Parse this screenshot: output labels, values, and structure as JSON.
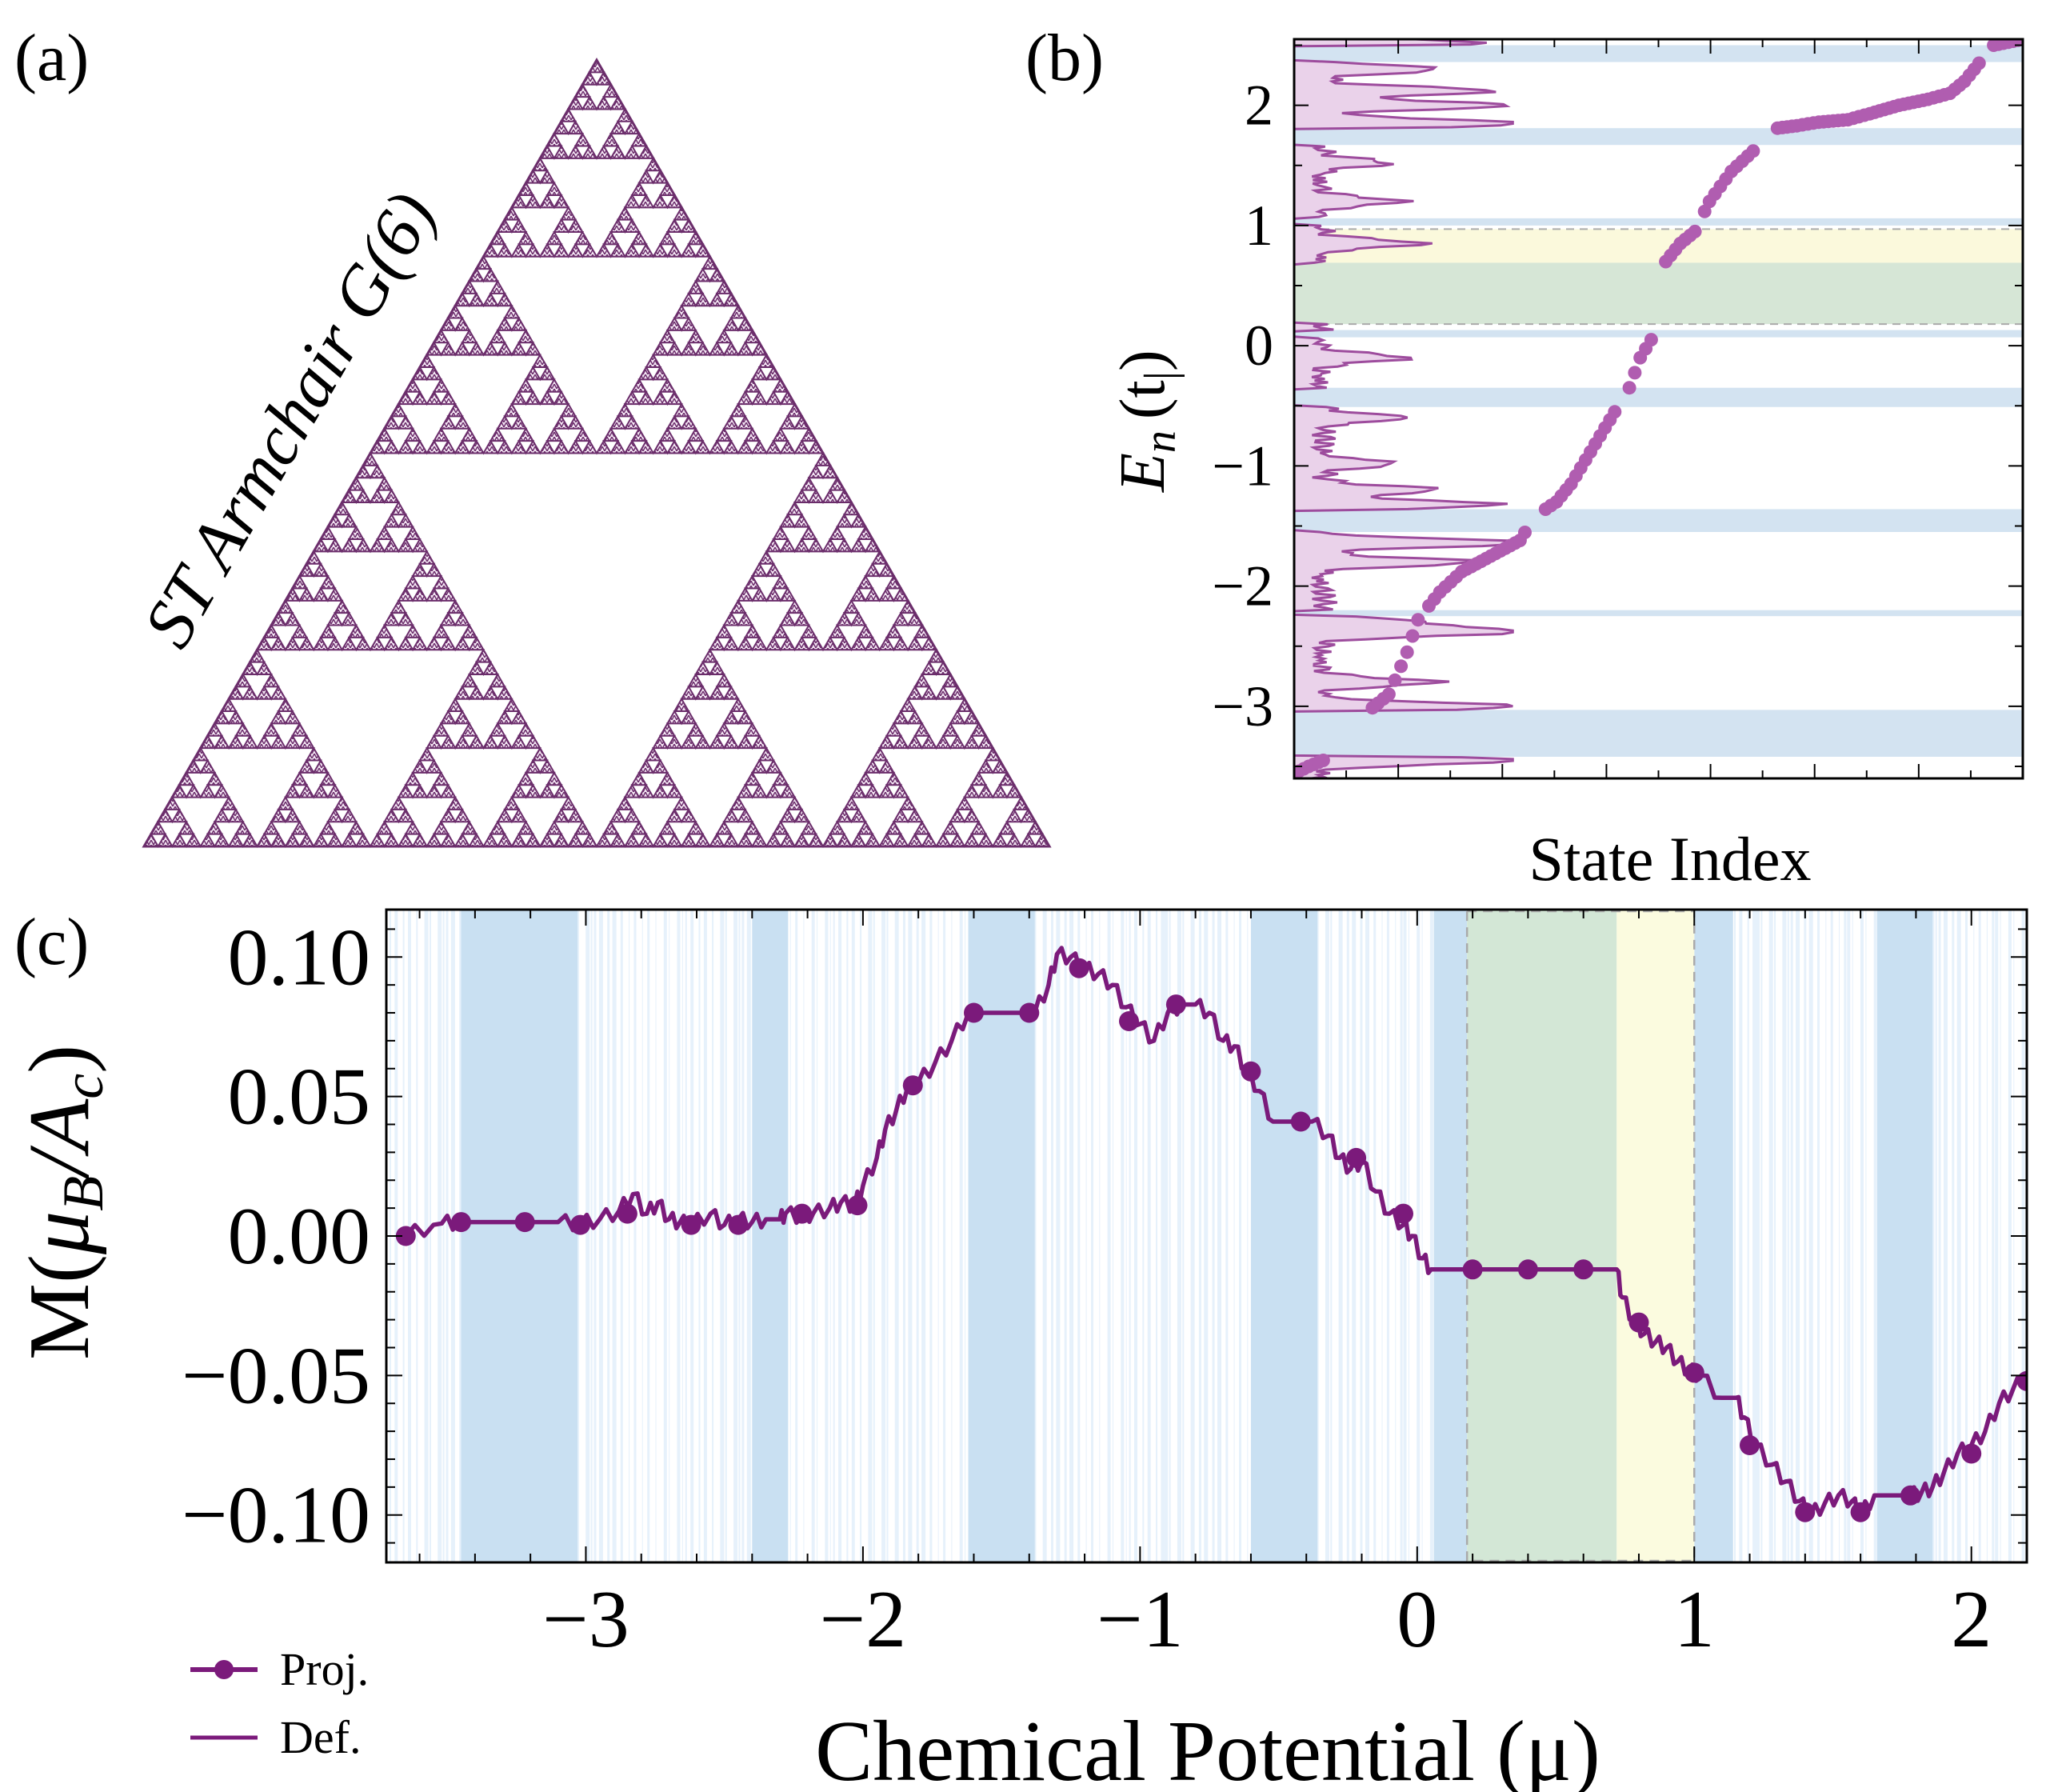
{
  "figure": {
    "panel_a": {
      "label": "(a)",
      "title": "ST Armchair G(6)",
      "color": "#6b2d6b"
    },
    "panel_b": {
      "label": "(b)",
      "ylabel_var": "E",
      "ylabel_sub": "n",
      "ylabel_unit": "(t",
      "ylabel_unit_sub": "|",
      "ylabel_close": ")",
      "xlabel": "State Index"
    },
    "panel_c": {
      "label": "(c)",
      "ylabel_pre": "M(",
      "ylabel_mu": "μ",
      "ylabel_musub": "B",
      "ylabel_slash": "/",
      "ylabel_a": "A",
      "ylabel_asub": "c",
      "ylabel_close": ")",
      "xlabel": "Chemical Potential (μ)",
      "legend": {
        "proj": "Proj.",
        "def": "Def."
      }
    }
  },
  "chart_data": [
    {
      "id": "b",
      "type": "scatter",
      "title": "",
      "xlabel": "State Index",
      "ylabel": "E_n (t|)",
      "ylim": [
        -3.6,
        2.55
      ],
      "yticks": [
        -3,
        -2,
        -1,
        0,
        1,
        2
      ],
      "ytick_labels": [
        "−3",
        "−2",
        "−1",
        "0",
        "1",
        "2"
      ],
      "grid": false,
      "colors": {
        "points": "#b05db0",
        "dos": "#9d4c9d",
        "dos_fill": "#ead2ea",
        "gap": "#d3e3f1",
        "yellow": "#fbf9dc",
        "green": "#d6e6d6"
      },
      "spectrum": [
        {
          "idx": 0.0,
          "E": -3.56
        },
        {
          "idx": 0.02,
          "E": -3.5
        },
        {
          "idx": 0.04,
          "E": -3.45
        },
        {
          "idx": 0.07,
          "E": -3.28
        },
        {
          "idx": 0.1,
          "E": -3.05
        },
        {
          "idx": 0.13,
          "E": -2.9
        },
        {
          "idx": 0.155,
          "E": -2.55
        },
        {
          "idx": 0.17,
          "E": -2.28
        },
        {
          "idx": 0.2,
          "E": -2.05
        },
        {
          "idx": 0.23,
          "E": -1.88
        },
        {
          "idx": 0.27,
          "E": -1.75
        },
        {
          "idx": 0.31,
          "E": -1.62
        },
        {
          "idx": 0.33,
          "E": -1.42
        },
        {
          "idx": 0.36,
          "E": -1.3
        },
        {
          "idx": 0.38,
          "E": -1.15
        },
        {
          "idx": 0.4,
          "E": -0.95
        },
        {
          "idx": 0.42,
          "E": -0.75
        },
        {
          "idx": 0.44,
          "E": -0.55
        },
        {
          "idx": 0.46,
          "E": -0.35
        },
        {
          "idx": 0.475,
          "E": -0.1
        },
        {
          "idx": 0.49,
          "E": 0.05
        },
        {
          "idx": 0.5,
          "E": 0.1
        },
        {
          "idx": 0.51,
          "E": 0.7
        },
        {
          "idx": 0.53,
          "E": 0.85
        },
        {
          "idx": 0.55,
          "E": 0.95
        },
        {
          "idx": 0.57,
          "E": 1.2
        },
        {
          "idx": 0.6,
          "E": 1.45
        },
        {
          "idx": 0.63,
          "E": 1.62
        },
        {
          "idx": 0.65,
          "E": 1.8
        },
        {
          "idx": 0.69,
          "E": 1.83
        },
        {
          "idx": 0.72,
          "E": 1.86
        },
        {
          "idx": 0.76,
          "E": 1.88
        },
        {
          "idx": 0.79,
          "E": 1.93
        },
        {
          "idx": 0.83,
          "E": 2.0
        },
        {
          "idx": 0.87,
          "E": 2.05
        },
        {
          "idx": 0.9,
          "E": 2.1
        },
        {
          "idx": 0.92,
          "E": 2.2
        },
        {
          "idx": 0.94,
          "E": 2.35
        },
        {
          "idx": 0.96,
          "E": 2.5
        },
        {
          "idx": 1.0,
          "E": 2.55
        }
      ],
      "gaps": [
        [
          2.36,
          2.5
        ],
        [
          1.67,
          1.81
        ],
        [
          1.0,
          1.06
        ],
        [
          0.18,
          0.69
        ],
        [
          0.07,
          0.13
        ],
        [
          -0.51,
          -0.35
        ],
        [
          -1.55,
          -1.36
        ],
        [
          -2.25,
          -2.2
        ],
        [
          -3.42,
          -3.03
        ]
      ],
      "yellow_band": [
        0.69,
        0.97
      ],
      "green_band": [
        0.18,
        0.69
      ],
      "dos_peaks": [
        {
          "E": -3.45,
          "w": 0.95
        },
        {
          "E": -3.0,
          "w": 0.9
        },
        {
          "E": -2.8,
          "w": 0.52
        },
        {
          "E": -2.38,
          "w": 1.0
        },
        {
          "E": -2.3,
          "w": 0.45
        },
        {
          "E": -1.8,
          "w": 0.7
        },
        {
          "E": -1.64,
          "w": 1.0
        },
        {
          "E": -1.32,
          "w": 0.82
        },
        {
          "E": -1.2,
          "w": 0.55
        },
        {
          "E": -0.98,
          "w": 0.35
        },
        {
          "E": -0.6,
          "w": 0.4
        },
        {
          "E": -0.1,
          "w": 0.38
        },
        {
          "E": 0.85,
          "w": 0.45
        },
        {
          "E": 1.2,
          "w": 0.35
        },
        {
          "E": 1.52,
          "w": 0.3
        },
        {
          "E": 1.85,
          "w": 1.0
        },
        {
          "E": 2.0,
          "w": 0.88
        },
        {
          "E": 2.12,
          "w": 0.8
        },
        {
          "E": 2.3,
          "w": 0.55
        },
        {
          "E": 2.52,
          "w": 0.7
        }
      ]
    },
    {
      "id": "c",
      "type": "line",
      "title": "",
      "xlabel": "Chemical Potential (μ)",
      "ylabel": "M(μ_B/A_c)",
      "xlim": [
        -3.72,
        2.2
      ],
      "ylim": [
        -0.117,
        0.117
      ],
      "xticks": [
        -3,
        -2,
        -1,
        0,
        1,
        2
      ],
      "xtick_labels": [
        "−3",
        "−2",
        "−1",
        "0",
        "1",
        "2"
      ],
      "yticks": [
        0.1,
        0.05,
        0.0,
        -0.05,
        -0.1
      ],
      "ytick_labels": [
        "0.10",
        "0.05",
        "0.00",
        "−0.05",
        "−0.10"
      ],
      "grid": false,
      "legend_position": "bottom-left",
      "colors": {
        "line": "#7b1a7b",
        "band": "#c9e0f2",
        "faint": "#e6f1fb",
        "yellow": "#fbfbdf",
        "green": "#d3e7d6"
      },
      "series": [
        {
          "name": "Def.",
          "x": [
            -3.65,
            -3.55,
            -3.52,
            -3.46,
            -3.4,
            -3.35,
            -3.25,
            -3.1,
            -3.02,
            -2.95,
            -2.88,
            -2.83,
            -2.78,
            -2.74,
            -2.7,
            -2.66,
            -2.62,
            -2.55,
            -2.5,
            -2.45,
            -2.4,
            -2.35,
            -2.3,
            -2.28,
            -2.22,
            -2.18,
            -2.12,
            -2.08,
            -2.03,
            -2.0,
            -1.95,
            -1.92,
            -1.88,
            -1.84,
            -1.8,
            -1.74,
            -1.68,
            -1.62,
            -1.5,
            -1.38,
            -1.33,
            -1.3,
            -1.25,
            -1.2,
            -1.15,
            -1.1,
            -1.05,
            -1.0,
            -0.95,
            -0.9,
            -0.85,
            -0.8,
            -0.75,
            -0.7,
            -0.66,
            -0.62,
            -0.57,
            -0.52,
            -0.46,
            -0.38,
            -0.32,
            -0.28,
            -0.24,
            -0.2,
            -0.15,
            -0.1,
            -0.05,
            -0.02,
            0.02,
            0.05,
            0.1,
            0.2,
            0.4,
            0.6,
            0.72,
            0.74,
            0.78,
            0.82,
            0.86,
            0.9,
            0.94,
            0.98,
            1.02,
            1.1,
            1.15,
            1.18,
            1.22,
            1.28,
            1.33,
            1.38,
            1.42,
            1.47,
            1.52,
            1.57,
            1.6,
            1.65,
            1.72,
            1.78,
            1.82,
            1.86,
            1.9,
            1.95,
            2.0,
            2.05,
            2.1,
            2.15,
            2.2
          ],
          "y": [
            0.0,
            0.004,
            0.0045,
            0.005,
            0.005,
            0.005,
            0.005,
            0.005,
            0.0045,
            0.006,
            0.009,
            0.015,
            0.008,
            0.012,
            0.006,
            0.005,
            0.004,
            0.008,
            0.004,
            0.006,
            0.005,
            0.006,
            0.006,
            0.008,
            0.007,
            0.008,
            0.01,
            0.012,
            0.011,
            0.018,
            0.028,
            0.038,
            0.045,
            0.053,
            0.055,
            0.062,
            0.07,
            0.08,
            0.08,
            0.08,
            0.09,
            0.101,
            0.1,
            0.096,
            0.094,
            0.09,
            0.082,
            0.076,
            0.07,
            0.08,
            0.083,
            0.083,
            0.08,
            0.07,
            0.068,
            0.06,
            0.052,
            0.041,
            0.041,
            0.041,
            0.036,
            0.028,
            0.024,
            0.027,
            0.016,
            0.008,
            0.004,
            0.0,
            -0.008,
            -0.012,
            -0.012,
            -0.012,
            -0.012,
            -0.012,
            -0.012,
            -0.022,
            -0.03,
            -0.035,
            -0.038,
            -0.04,
            -0.045,
            -0.048,
            -0.05,
            -0.058,
            -0.058,
            -0.065,
            -0.075,
            -0.082,
            -0.088,
            -0.095,
            -0.1,
            -0.096,
            -0.093,
            -0.095,
            -0.1,
            -0.093,
            -0.093,
            -0.093,
            -0.092,
            -0.09,
            -0.085,
            -0.078,
            -0.075,
            -0.07,
            -0.06,
            -0.055,
            -0.05
          ]
        },
        {
          "name": "Proj.",
          "x": [
            -3.65,
            -3.45,
            -3.22,
            -3.02,
            -2.85,
            -2.62,
            -2.45,
            -2.22,
            -2.02,
            -1.82,
            -1.6,
            -1.4,
            -1.22,
            -1.04,
            -0.87,
            -0.6,
            -0.42,
            -0.22,
            -0.05,
            0.2,
            0.4,
            0.6,
            0.8,
            1.0,
            1.2,
            1.4,
            1.6,
            1.78,
            2.0,
            2.2
          ],
          "y": [
            0.0,
            0.005,
            0.005,
            0.004,
            0.008,
            0.004,
            0.004,
            0.008,
            0.011,
            0.054,
            0.08,
            0.08,
            0.096,
            0.077,
            0.083,
            0.059,
            0.041,
            0.028,
            0.008,
            -0.012,
            -0.012,
            -0.012,
            -0.031,
            -0.049,
            -0.075,
            -0.099,
            -0.099,
            -0.093,
            -0.078,
            -0.052
          ]
        }
      ],
      "bands": [
        [
          -3.45,
          -3.03
        ],
        [
          -2.4,
          -2.27
        ],
        [
          -1.62,
          -1.38
        ],
        [
          -0.6,
          -0.36
        ],
        [
          0.06,
          0.18
        ],
        [
          1.0,
          1.14
        ],
        [
          1.66,
          1.86
        ]
      ],
      "green_band": [
        0.18,
        0.72
      ],
      "yellow_band": [
        0.72,
        1.0
      ]
    }
  ]
}
